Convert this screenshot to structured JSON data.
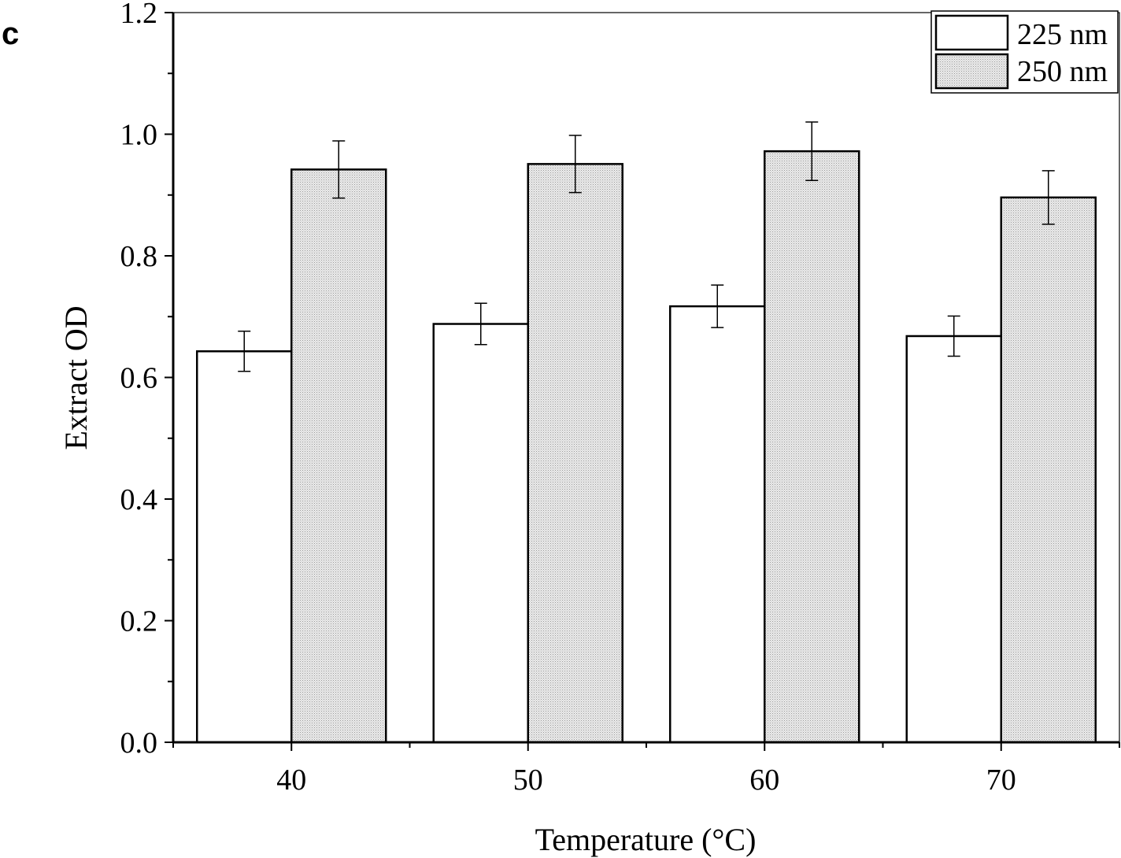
{
  "panel_label": "c",
  "chart_data": {
    "type": "bar",
    "categories": [
      "40",
      "50",
      "60",
      "70"
    ],
    "series": [
      {
        "name": "225 nm",
        "values": [
          0.643,
          0.688,
          0.717,
          0.668
        ],
        "errors": [
          0.033,
          0.034,
          0.035,
          0.033
        ],
        "fill": "white"
      },
      {
        "name": "250 nm",
        "values": [
          0.942,
          0.951,
          0.972,
          0.896
        ],
        "errors": [
          0.047,
          0.047,
          0.048,
          0.044
        ],
        "fill": "dotted-gray"
      }
    ],
    "xlabel": "Temperature (°C)",
    "ylabel": "Extract OD",
    "ylim": [
      0,
      1.2
    ],
    "yticks": [
      "0.0",
      "0.2",
      "0.4",
      "0.6",
      "0.8",
      "1.0",
      "1.2"
    ],
    "grid": false,
    "legend_position": "top-right"
  }
}
